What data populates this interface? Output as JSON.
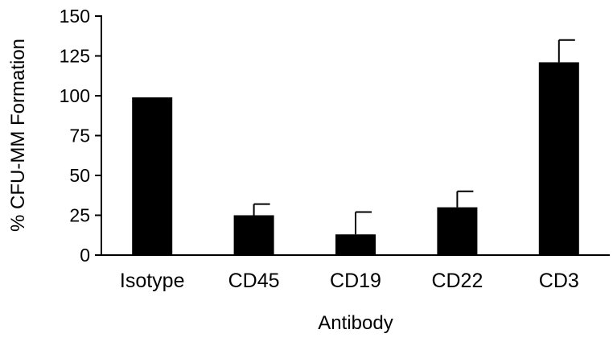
{
  "chart_data": {
    "type": "bar",
    "xlabel": "Antibody",
    "ylabel": "% CFU-MM Formation",
    "ylim": [
      0,
      150
    ],
    "yticks": [
      0,
      25,
      50,
      75,
      100,
      125,
      150
    ],
    "categories": [
      "Isotype",
      "CD45",
      "CD19",
      "CD22",
      "CD3"
    ],
    "values": [
      99,
      25,
      13,
      30,
      121
    ],
    "error_upper": [
      0,
      7,
      14,
      10,
      14
    ],
    "bar_color": "#000000",
    "grid": false,
    "legend": "none"
  }
}
